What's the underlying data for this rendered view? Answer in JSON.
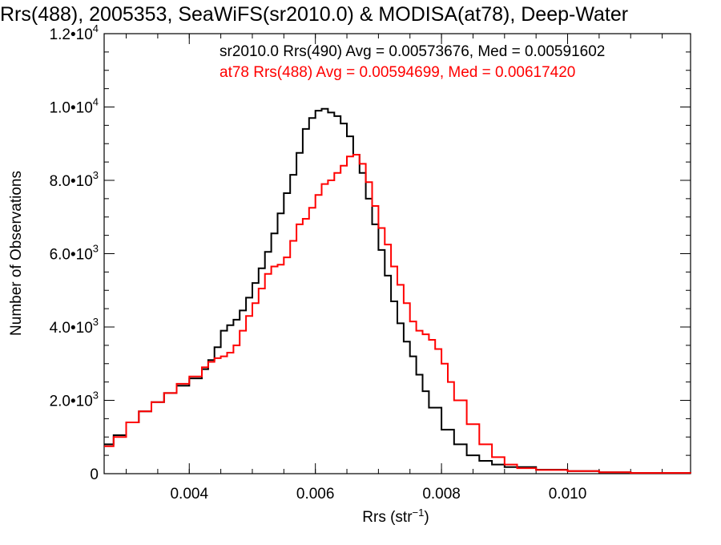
{
  "chart_data": {
    "type": "line",
    "title": "Rrs(488), 2005353, SeaWiFS(sr2010.0) & MODISA(at78), Deep-Water",
    "xlabel": "Rrs (str⁻¹)",
    "ylabel": "Number of Observations",
    "xlim": [
      0.00265,
      0.01195
    ],
    "ylim": [
      0,
      12000
    ],
    "x_ticks": [
      {
        "value": 0.004,
        "label": "0.004"
      },
      {
        "value": 0.006,
        "label": "0.006"
      },
      {
        "value": 0.008,
        "label": "0.008"
      },
      {
        "value": 0.01,
        "label": "0.010"
      }
    ],
    "y_ticks": [
      {
        "value": 0,
        "mant": "0",
        "exp": ""
      },
      {
        "value": 2000,
        "mant": "2.0•10",
        "exp": "3"
      },
      {
        "value": 4000,
        "mant": "4.0•10",
        "exp": "3"
      },
      {
        "value": 6000,
        "mant": "6.0•10",
        "exp": "3"
      },
      {
        "value": 8000,
        "mant": "8.0•10",
        "exp": "3"
      },
      {
        "value": 10000,
        "mant": "1.0•10",
        "exp": "4"
      },
      {
        "value": 12000,
        "mant": "1.2•10",
        "exp": "4"
      }
    ],
    "x_minor_step": 0.0005,
    "y_minor_step": 500,
    "grid": false,
    "legend_position": "top-right",
    "series": [
      {
        "name": "sr2010.0 Rrs(490)",
        "annotation": "sr2010.0 Rrs(490) Avg = 0.00573676, Med = 0.00591602",
        "color": "#000000",
        "x": [
          0.00265,
          0.0028,
          0.003,
          0.0032,
          0.0034,
          0.0036,
          0.0038,
          0.004,
          0.0042,
          0.0043,
          0.0044,
          0.0045,
          0.0046,
          0.0047,
          0.0048,
          0.0049,
          0.005,
          0.0051,
          0.0052,
          0.0053,
          0.0054,
          0.0055,
          0.0056,
          0.0057,
          0.0058,
          0.0059,
          0.006,
          0.0061,
          0.0062,
          0.0063,
          0.0064,
          0.0065,
          0.0066,
          0.0067,
          0.0068,
          0.0069,
          0.007,
          0.0071,
          0.0072,
          0.0073,
          0.0074,
          0.0075,
          0.0076,
          0.0077,
          0.0078,
          0.008,
          0.0082,
          0.0084,
          0.0086,
          0.0088,
          0.009,
          0.0095,
          0.01,
          0.0105,
          0.011,
          0.01195
        ],
        "y": [
          800,
          1050,
          1400,
          1700,
          1950,
          2200,
          2400,
          2600,
          2850,
          3100,
          3450,
          3900,
          4050,
          4200,
          4450,
          4800,
          5200,
          5600,
          6050,
          6550,
          7100,
          7650,
          8150,
          8750,
          9400,
          9700,
          9900,
          9950,
          9850,
          9750,
          9550,
          9200,
          8700,
          8200,
          7500,
          6800,
          6100,
          5400,
          4700,
          4100,
          3600,
          3200,
          2700,
          2250,
          1800,
          1200,
          800,
          500,
          350,
          250,
          180,
          110,
          70,
          40,
          20,
          10
        ]
      },
      {
        "name": "at78 Rrs(488)",
        "annotation": "at78 Rrs(488) Avg = 0.00594699, Med = 0.00617420",
        "color": "#ff0000",
        "x": [
          0.00265,
          0.0028,
          0.003,
          0.0032,
          0.0034,
          0.0036,
          0.0038,
          0.004,
          0.0042,
          0.0043,
          0.0044,
          0.0045,
          0.0046,
          0.0047,
          0.0048,
          0.0049,
          0.005,
          0.0051,
          0.0052,
          0.0053,
          0.0054,
          0.0055,
          0.0056,
          0.0057,
          0.0058,
          0.0059,
          0.006,
          0.0061,
          0.0062,
          0.0063,
          0.0064,
          0.0065,
          0.0066,
          0.0067,
          0.0068,
          0.0069,
          0.007,
          0.0071,
          0.0072,
          0.0073,
          0.0074,
          0.0075,
          0.0076,
          0.0077,
          0.0078,
          0.0079,
          0.008,
          0.0081,
          0.0082,
          0.0084,
          0.0086,
          0.0088,
          0.009,
          0.0092,
          0.0095,
          0.01,
          0.0105,
          0.011,
          0.01195
        ],
        "y": [
          750,
          1000,
          1400,
          1700,
          1950,
          2200,
          2450,
          2650,
          2900,
          3050,
          3150,
          3200,
          3300,
          3500,
          3900,
          4300,
          4650,
          5050,
          5450,
          5650,
          5700,
          5900,
          6350,
          6800,
          6950,
          7250,
          7600,
          7900,
          8000,
          8200,
          8400,
          8650,
          8700,
          8450,
          7950,
          7300,
          6700,
          6250,
          5650,
          5150,
          4650,
          4150,
          3900,
          3800,
          3650,
          3400,
          3000,
          2500,
          2000,
          1350,
          800,
          450,
          250,
          150,
          100,
          70,
          40,
          20,
          10
        ]
      }
    ]
  }
}
